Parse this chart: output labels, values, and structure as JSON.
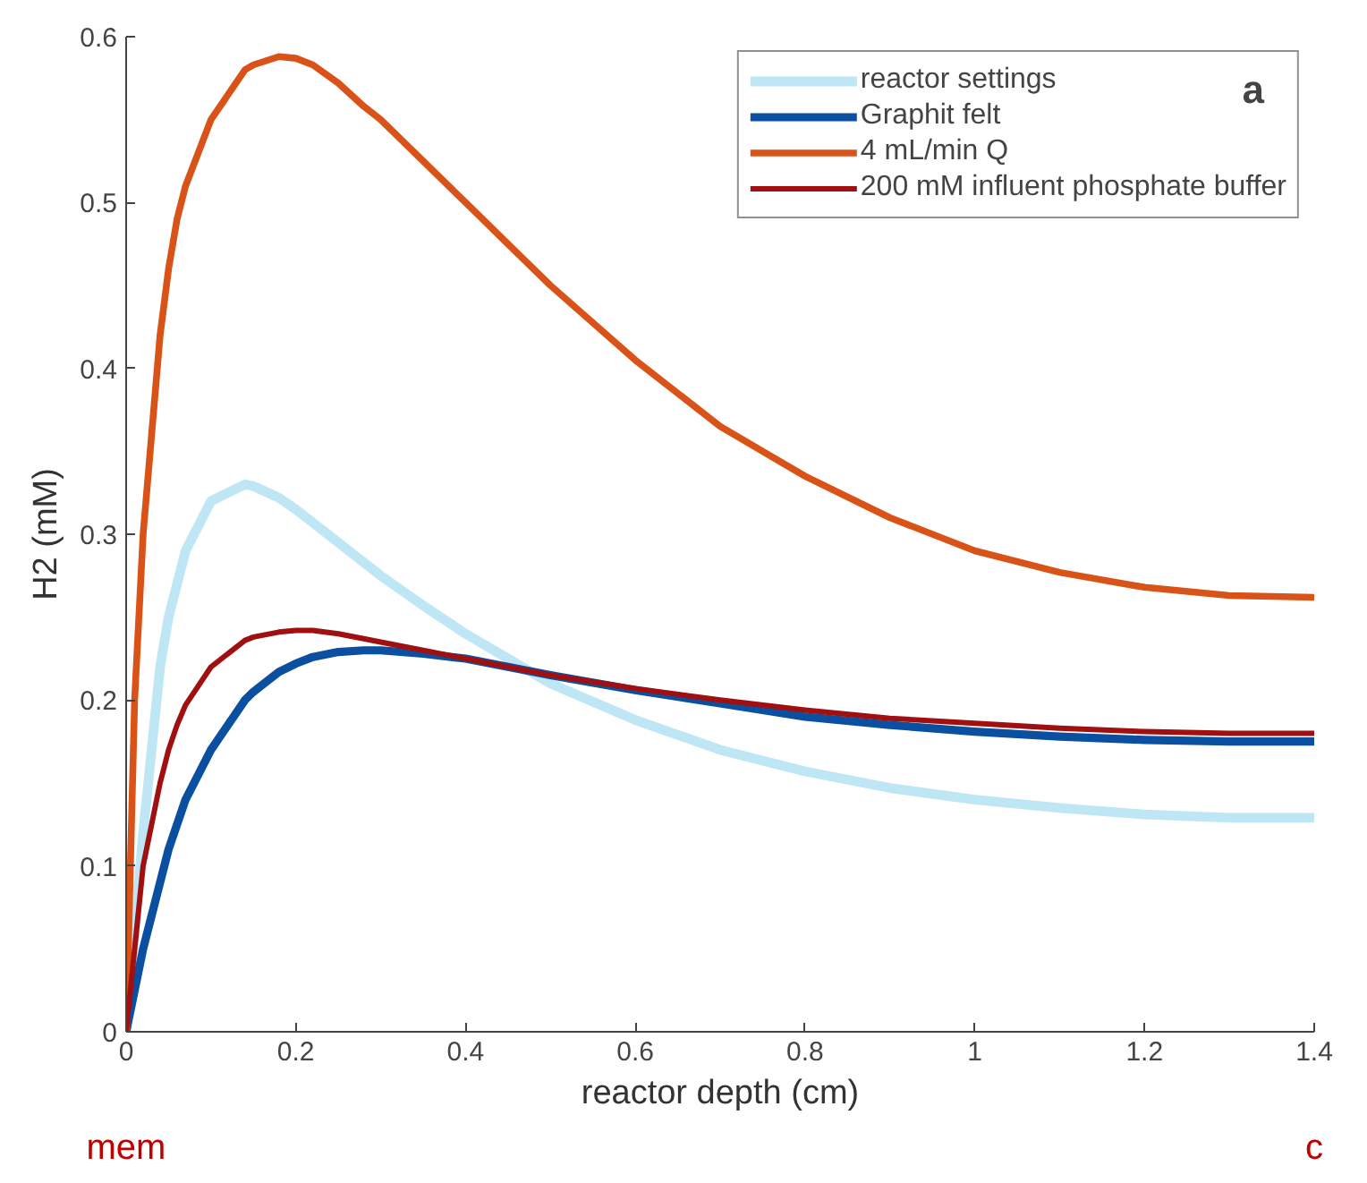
{
  "chart_data": {
    "type": "line",
    "xlabel": "reactor depth (cm)",
    "ylabel": "H2 (mM)",
    "x": [
      0,
      0.01,
      0.02,
      0.04,
      0.05,
      0.06,
      0.07,
      0.1,
      0.14,
      0.15,
      0.18,
      0.2,
      0.22,
      0.25,
      0.28,
      0.3,
      0.35,
      0.4,
      0.45,
      0.5,
      0.6,
      0.7,
      0.8,
      0.9,
      1.0,
      1.1,
      1.2,
      1.3,
      1.4
    ],
    "series": [
      {
        "name": "reactor settings",
        "color": "#bfe6f5",
        "values": [
          0,
          0.06,
          0.12,
          0.22,
          0.25,
          0.27,
          0.29,
          0.32,
          0.33,
          0.329,
          0.322,
          0.315,
          0.307,
          0.295,
          0.283,
          0.275,
          0.257,
          0.24,
          0.225,
          0.21,
          0.188,
          0.17,
          0.157,
          0.147,
          0.14,
          0.135,
          0.131,
          0.129,
          0.129
        ]
      },
      {
        "name": "Graphit felt",
        "color": "#0a4fa0",
        "values": [
          0,
          0.025,
          0.05,
          0.09,
          0.11,
          0.125,
          0.14,
          0.17,
          0.2,
          0.205,
          0.217,
          0.222,
          0.226,
          0.229,
          0.23,
          0.23,
          0.228,
          0.225,
          0.22,
          0.215,
          0.206,
          0.198,
          0.19,
          0.185,
          0.181,
          0.178,
          0.176,
          0.175,
          0.175
        ]
      },
      {
        "name": "4 mL/min Q",
        "color": "#d95319",
        "values": [
          0,
          0.2,
          0.3,
          0.42,
          0.46,
          0.49,
          0.51,
          0.55,
          0.58,
          0.583,
          0.588,
          0.587,
          0.583,
          0.572,
          0.558,
          0.55,
          0.525,
          0.5,
          0.475,
          0.45,
          0.405,
          0.365,
          0.335,
          0.31,
          0.29,
          0.277,
          0.268,
          0.263,
          0.262
        ]
      },
      {
        "name": "200 mM influent phosphate buffer",
        "color": "#a01010",
        "values": [
          0,
          0.05,
          0.1,
          0.15,
          0.17,
          0.185,
          0.197,
          0.22,
          0.236,
          0.238,
          0.241,
          0.242,
          0.242,
          0.24,
          0.237,
          0.235,
          0.23,
          0.225,
          0.22,
          0.215,
          0.207,
          0.2,
          0.194,
          0.189,
          0.186,
          0.183,
          0.181,
          0.18,
          0.18
        ]
      }
    ],
    "xlim": [
      0,
      1.4
    ],
    "xticks": [
      0,
      0.2,
      0.4,
      0.6,
      0.8,
      1,
      1.2,
      1.4
    ],
    "ylim": [
      0,
      0.6
    ],
    "yticks": [
      0,
      0.1,
      0.2,
      0.3,
      0.4,
      0.5,
      0.6
    ],
    "annotations": [
      "mem",
      "c",
      "a"
    ],
    "grid": false,
    "legend": "top right",
    "marker": "none",
    "line_style": "solid"
  }
}
